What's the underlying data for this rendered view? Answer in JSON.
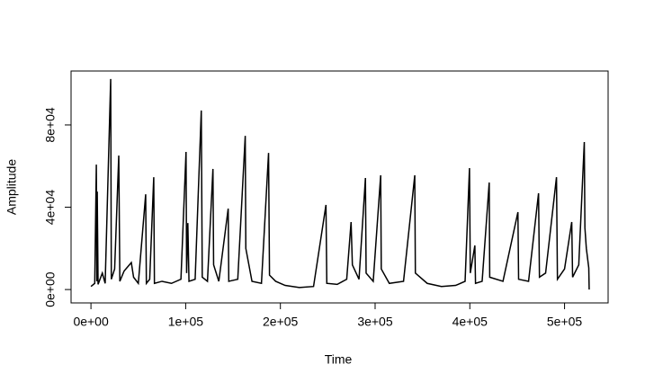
{
  "chart_data": {
    "type": "line",
    "x_label": "Time",
    "y_label": "Amplitude",
    "x": [
      0,
      4000,
      5682,
      6200,
      6629,
      7500,
      12000,
      15000,
      20834,
      21500,
      25000,
      29357,
      30500,
      35000,
      42615,
      45000,
      50000,
      57767,
      58500,
      62000,
      66290,
      67000,
      75000,
      85000,
      95000,
      100382,
      101000,
      102276,
      103500,
      110000,
      116481,
      117500,
      123000,
      128792,
      129500,
      135000,
      144891,
      145500,
      155000,
      162884,
      163500,
      170000,
      180000,
      187506,
      188500,
      195000,
      205000,
      220000,
      235000,
      248114,
      249000,
      260000,
      270000,
      274630,
      276000,
      283000,
      289782,
      290500,
      298000,
      305881,
      306500,
      315000,
      330000,
      341867,
      342500,
      355000,
      370000,
      385000,
      395000,
      399634,
      400500,
      405316,
      406000,
      413000,
      420468,
      421000,
      435000,
      450772,
      451500,
      462000,
      472553,
      473500,
      480000,
      491493,
      492500,
      500000,
      507592,
      508500,
      515000,
      520850,
      521500,
      523000,
      525585,
      526000
    ],
    "y": [
      1500,
      3000,
      60700,
      4000,
      47600,
      2500,
      8000,
      3000,
      102300,
      5000,
      10000,
      65100,
      4000,
      9000,
      13100,
      6000,
      3000,
      46300,
      3000,
      5000,
      54600,
      3000,
      4000,
      3000,
      5000,
      66900,
      8000,
      32300,
      4000,
      5000,
      87000,
      6000,
      4000,
      58600,
      12000,
      4000,
      39300,
      4000,
      5000,
      74700,
      20000,
      4000,
      3000,
      66400,
      7000,
      4000,
      2000,
      1000,
      1500,
      41100,
      3000,
      2500,
      5000,
      32800,
      12000,
      5000,
      54200,
      8000,
      4000,
      55500,
      10000,
      3000,
      4000,
      55500,
      8000,
      3000,
      1500,
      2000,
      4000,
      59000,
      8000,
      21400,
      3000,
      4000,
      52000,
      6000,
      4000,
      37600,
      5000,
      4000,
      46800,
      6000,
      8000,
      54600,
      5000,
      10000,
      32800,
      6000,
      12000,
      71700,
      30000,
      20000,
      10500,
      0
    ],
    "color": "#000000",
    "xlim": [
      -21000,
      546000
    ],
    "ylim": [
      -6500,
      106200
    ],
    "xticks": [
      {
        "value": 0,
        "label": "0e+00"
      },
      {
        "value": 100000,
        "label": "1e+05"
      },
      {
        "value": 200000,
        "label": "2e+05"
      },
      {
        "value": 300000,
        "label": "3e+05"
      },
      {
        "value": 400000,
        "label": "4e+05"
      },
      {
        "value": 500000,
        "label": "5e+05"
      }
    ],
    "yticks": [
      {
        "value": 0,
        "label": "0e+00"
      },
      {
        "value": 40000,
        "label": "4e+04"
      },
      {
        "value": 80000,
        "label": "8e+04"
      }
    ],
    "grid": false
  }
}
